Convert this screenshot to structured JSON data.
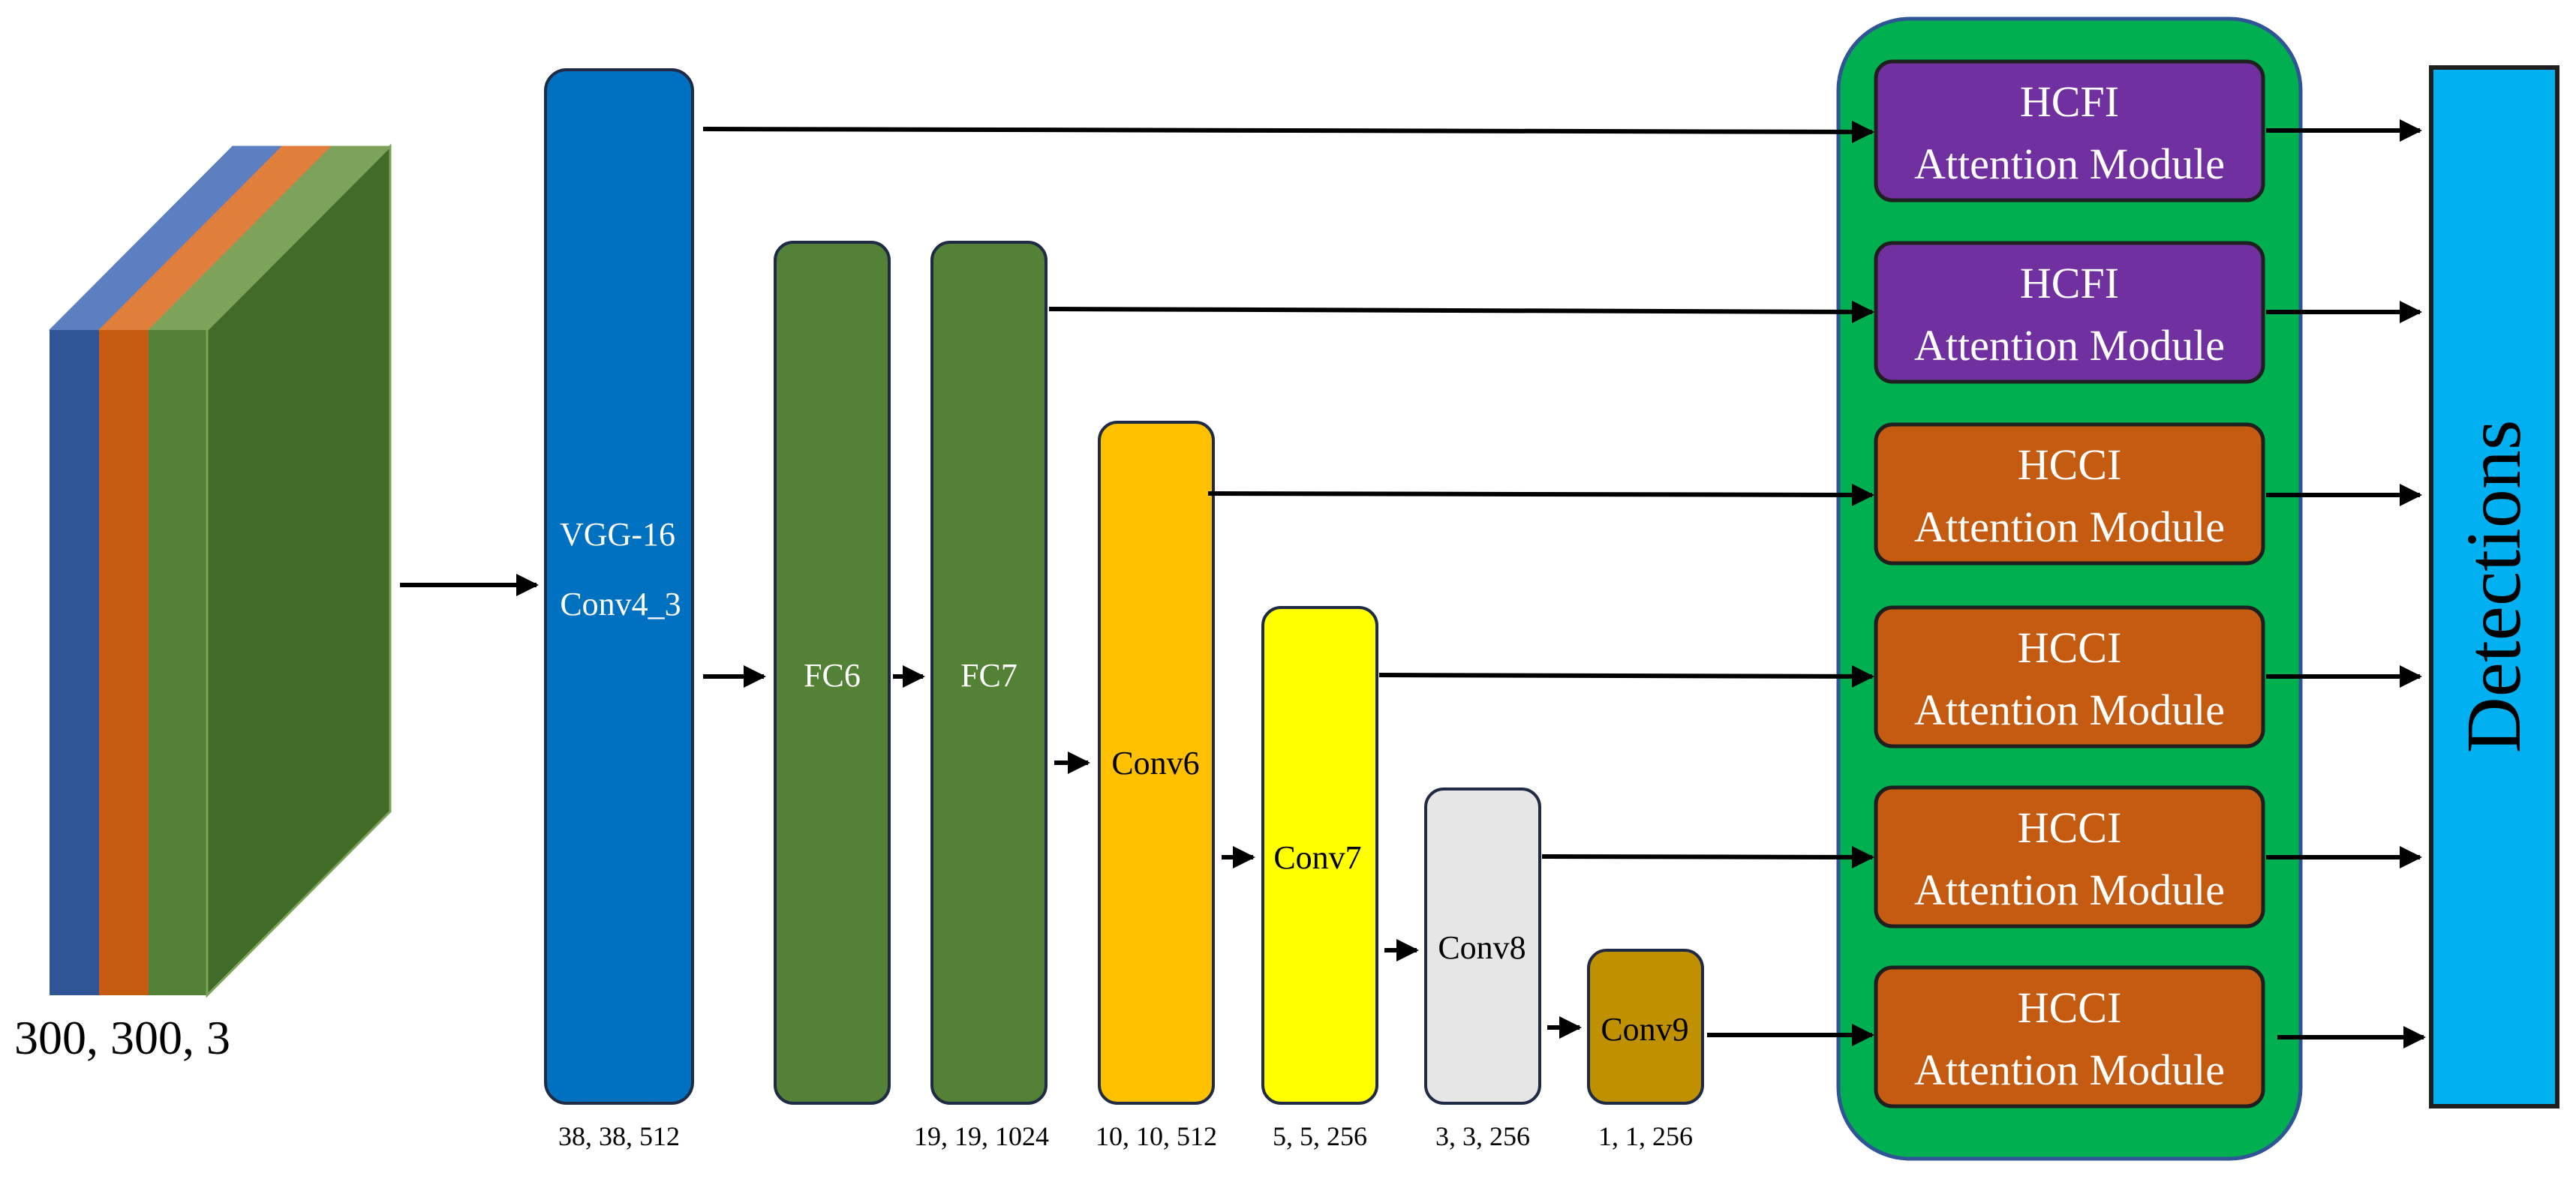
{
  "input": {
    "size_label": "300, 300, 3",
    "colors": {
      "blue": "#2F5597",
      "blue_top": "#5B7FC0",
      "orange": "#C55A11",
      "orange_top": "#E07E3C",
      "green": "#538135",
      "green_top": "#7DA35A",
      "green_side": "#426B2A"
    }
  },
  "backbone": {
    "vgg_label_1": "VGG-16",
    "vgg_label_2": "Conv4_3",
    "vgg_dims": "38, 38, 512",
    "fc6_label": "FC6",
    "fc7_label": "FC7",
    "fc7_dims": "19, 19, 1024",
    "conv6_label": "Conv6",
    "conv6_dims": "10, 10, 512",
    "conv7_label": "Conv7",
    "conv7_dims": "5, 5, 256",
    "conv8_label": "Conv8",
    "conv8_dims": "3, 3, 256",
    "conv9_label": "Conv9",
    "conv9_dims": "1, 1, 256"
  },
  "attention": {
    "modules": [
      {
        "line1": "HCFI",
        "line2": "Attention Module",
        "kind": "hcfi"
      },
      {
        "line1": "HCFI",
        "line2": "Attention Module",
        "kind": "hcfi"
      },
      {
        "line1": "HCCI",
        "line2": "Attention Module",
        "kind": "hcci"
      },
      {
        "line1": "HCCI",
        "line2": "Attention Module",
        "kind": "hcci"
      },
      {
        "line1": "HCCI",
        "line2": "Attention Module",
        "kind": "hcci"
      },
      {
        "line1": "HCCI",
        "line2": "Attention Module",
        "kind": "hcci"
      }
    ]
  },
  "output": {
    "label": "Detections"
  },
  "colors": {
    "vgg": "#0070C0",
    "fc": "#538135",
    "conv6": "#FFC000",
    "conv7": "#FFFF00",
    "conv8": "#E7E6E6",
    "conv9": "#BF9000",
    "attention_panel": "#00B050",
    "hcfi": "#7030A0",
    "hcci": "#C55A11",
    "detections": "#00B0F0"
  }
}
